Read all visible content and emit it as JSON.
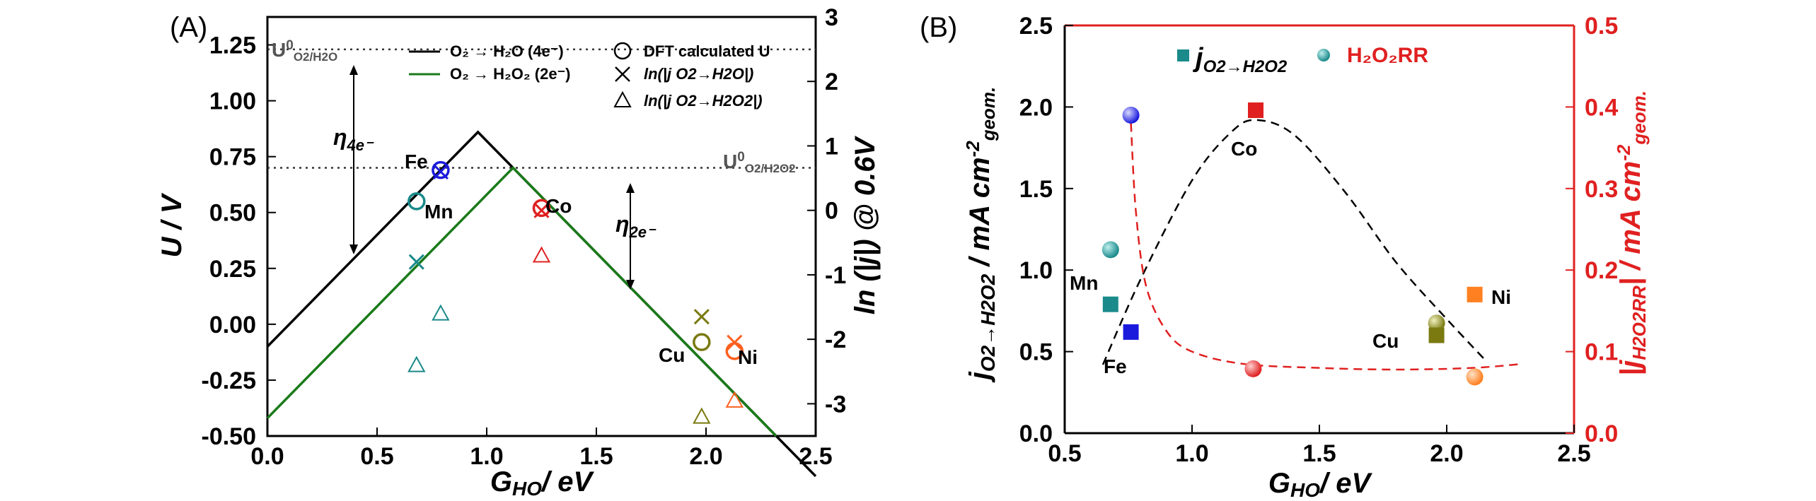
{
  "chart_data": [
    {
      "panel": "(A)",
      "type": "line",
      "xlabel": "G_HO/ eV",
      "xlabel_main": "G",
      "xlabel_sub": "HO",
      "xlabel_rest": "/ eV",
      "ylabel": "U / V",
      "y2label": "ln (|j|) @ 0.6V",
      "xlim": [
        0.0,
        2.5
      ],
      "ylim": [
        -0.5,
        1.375
      ],
      "y2lim": [
        -3.5,
        3.0
      ],
      "x_ticks": [
        "0.0",
        "0.5",
        "1.0",
        "1.5",
        "2.0",
        "2.5"
      ],
      "x_tick_values": [
        0.0,
        0.5,
        1.0,
        1.5,
        2.0,
        2.5
      ],
      "y_ticks": [
        "-0.50",
        "-0.25",
        "0.00",
        "0.25",
        "0.50",
        "0.75",
        "1.00",
        "1.25"
      ],
      "y_tick_values": [
        -0.5,
        -0.25,
        0.0,
        0.25,
        0.5,
        0.75,
        1.0,
        1.25
      ],
      "y2_ticks": [
        "-3",
        "-2",
        "-1",
        "0",
        "1",
        "2",
        "3"
      ],
      "y2_tick_values": [
        -3,
        -2,
        -1,
        0,
        1,
        2,
        3
      ],
      "reference_lines": [
        {
          "label_main": "U",
          "label_sup": "0",
          "label_sub": "O2/H2O",
          "y": 1.23
        },
        {
          "label_main": "U",
          "label_sup": "0",
          "label_sub": "O2/H2O2",
          "y": 0.7
        }
      ],
      "series": [
        {
          "name": "O₂ → H₂O (4e⁻)",
          "color": "#000000",
          "x": [
            0.0,
            0.96,
            2.5
          ],
          "y": [
            -0.1,
            0.86,
            -0.68
          ]
        },
        {
          "name": "O₂ → H₂O₂ (2e⁻)",
          "color": "#1a7a1a",
          "x": [
            0.0,
            1.12,
            2.32
          ],
          "y": [
            -0.42,
            0.7,
            -0.5
          ]
        }
      ],
      "legend_markers": [
        {
          "symbol": "circle",
          "text": "DFT calculated U"
        },
        {
          "symbol": "x",
          "text": "ln(|j O2→H2O|)"
        },
        {
          "symbol": "triangle",
          "text": "ln(|j O2→H2O2|)"
        }
      ],
      "annotations": [
        {
          "text_main": "η",
          "text_sub": "4e⁻"
        },
        {
          "text_main": "η",
          "text_sub": "2e⁻"
        }
      ],
      "points": [
        {
          "metal": "Fe",
          "color": "#1a1adc",
          "G": 0.79,
          "U": 0.69,
          "ln_j_H2O": 0.6,
          "ln_j_H2O2": null
        },
        {
          "metal": "Mn",
          "color": "#1a8a8a",
          "G": 0.68,
          "U": 0.55,
          "ln_j_H2O": -0.8,
          "ln_j_H2O2": -2.4
        },
        {
          "metal": "Mn",
          "color": "#1a8a8a",
          "G": 0.79,
          "U": null,
          "ln_j_H2O": null,
          "ln_j_H2O2": -1.6
        },
        {
          "metal": "Co",
          "color": "#e02020",
          "G": 1.25,
          "U": 0.52,
          "ln_j_H2O": 0.0,
          "ln_j_H2O2": -0.7
        },
        {
          "metal": "Cu",
          "color": "#7a7a10",
          "G": 1.98,
          "U": -0.08,
          "ln_j_H2O": -1.65,
          "ln_j_H2O2": -3.2
        },
        {
          "metal": "Ni",
          "color": "#ff6020",
          "G": 2.13,
          "U": -0.12,
          "ln_j_H2O": -2.05,
          "ln_j_H2O2": -2.95
        }
      ]
    },
    {
      "panel": "(B)",
      "type": "scatter",
      "xlabel": "G_HO/ eV",
      "xlabel_main": "G",
      "xlabel_sub": "HO",
      "xlabel_rest": "/ eV",
      "ylabel": "j O2→H2O2 / mA cm-2 geom.",
      "y2label": "|j H2O2RR| / mA cm-2 geom.",
      "xlim": [
        0.5,
        2.5
      ],
      "ylim": [
        0.0,
        2.5
      ],
      "y2lim": [
        0.0,
        0.5
      ],
      "x_ticks": [
        "0.5",
        "1.0",
        "1.5",
        "2.0",
        "2.5"
      ],
      "x_tick_values": [
        0.5,
        1.0,
        1.5,
        2.0,
        2.5
      ],
      "y_ticks": [
        "0.0",
        "0.5",
        "1.0",
        "1.5",
        "2.0",
        "2.5"
      ],
      "y_tick_values": [
        0.0,
        0.5,
        1.0,
        1.5,
        2.0,
        2.5
      ],
      "y2_ticks": [
        "0.0",
        "0.1",
        "0.2",
        "0.3",
        "0.4",
        "0.5"
      ],
      "y2_tick_values": [
        0.0,
        0.1,
        0.2,
        0.3,
        0.4,
        0.5
      ],
      "right_axis_color": "#e02020",
      "legend": [
        {
          "symbol": "square",
          "color": "#1a8a8a",
          "text": "j O2→H2O2"
        },
        {
          "symbol": "ball",
          "color": "#1a8a8a",
          "text": "H₂O₂RR"
        }
      ],
      "squares_j_O2_to_H2O2": [
        {
          "metal": "Mn",
          "color": "#1a8a8a",
          "G": 0.68,
          "j": 0.79
        },
        {
          "metal": "Fe",
          "color": "#1a1adc",
          "G": 0.76,
          "j": 0.62
        },
        {
          "metal": "Co",
          "color": "#e02020",
          "G": 1.25,
          "j": 1.98
        },
        {
          "metal": "Cu",
          "color": "#7a7a10",
          "G": 1.96,
          "j": 0.6
        },
        {
          "metal": "Ni",
          "color": "#ff8020",
          "G": 2.11,
          "j": 0.85
        }
      ],
      "balls_j_H2O2RR": [
        {
          "metal": "Mn",
          "color": "#1a8a8a",
          "G": 0.68,
          "j": 0.225
        },
        {
          "metal": "Fe",
          "color": "#1a1adc",
          "G": 0.76,
          "j": 0.39
        },
        {
          "metal": "Co",
          "color": "#e02020",
          "G": 1.24,
          "j": 0.079
        },
        {
          "metal": "Cu",
          "color": "#7a7a10",
          "G": 1.96,
          "j": 0.135
        },
        {
          "metal": "Ni",
          "color": "#ff8020",
          "G": 2.11,
          "j": 0.069
        }
      ],
      "fit_black": {
        "color": "#000000",
        "x": [
          0.65,
          0.8,
          1.0,
          1.15,
          1.25,
          1.4,
          1.6,
          1.8,
          2.0,
          2.15
        ],
        "y": [
          0.42,
          0.95,
          1.55,
          1.84,
          1.92,
          1.83,
          1.48,
          1.05,
          0.7,
          0.45
        ]
      },
      "fit_red": {
        "color": "#e02020",
        "x": [
          0.76,
          0.78,
          0.82,
          0.9,
          1.0,
          1.2,
          1.5,
          1.8,
          2.1,
          2.3
        ],
        "y2": [
          0.38,
          0.27,
          0.18,
          0.125,
          0.1,
          0.085,
          0.08,
          0.078,
          0.08,
          0.085
        ]
      },
      "labels": [
        {
          "text": "Mn",
          "G": 0.68,
          "j": 0.79
        },
        {
          "text": "Fe",
          "G": 0.76,
          "j": 0.62
        },
        {
          "text": "Co",
          "G": 1.25,
          "j": 1.98
        },
        {
          "text": "Cu",
          "G": 1.96,
          "j": 0.6
        },
        {
          "text": "Ni",
          "G": 2.11,
          "j": 0.85
        }
      ]
    }
  ]
}
